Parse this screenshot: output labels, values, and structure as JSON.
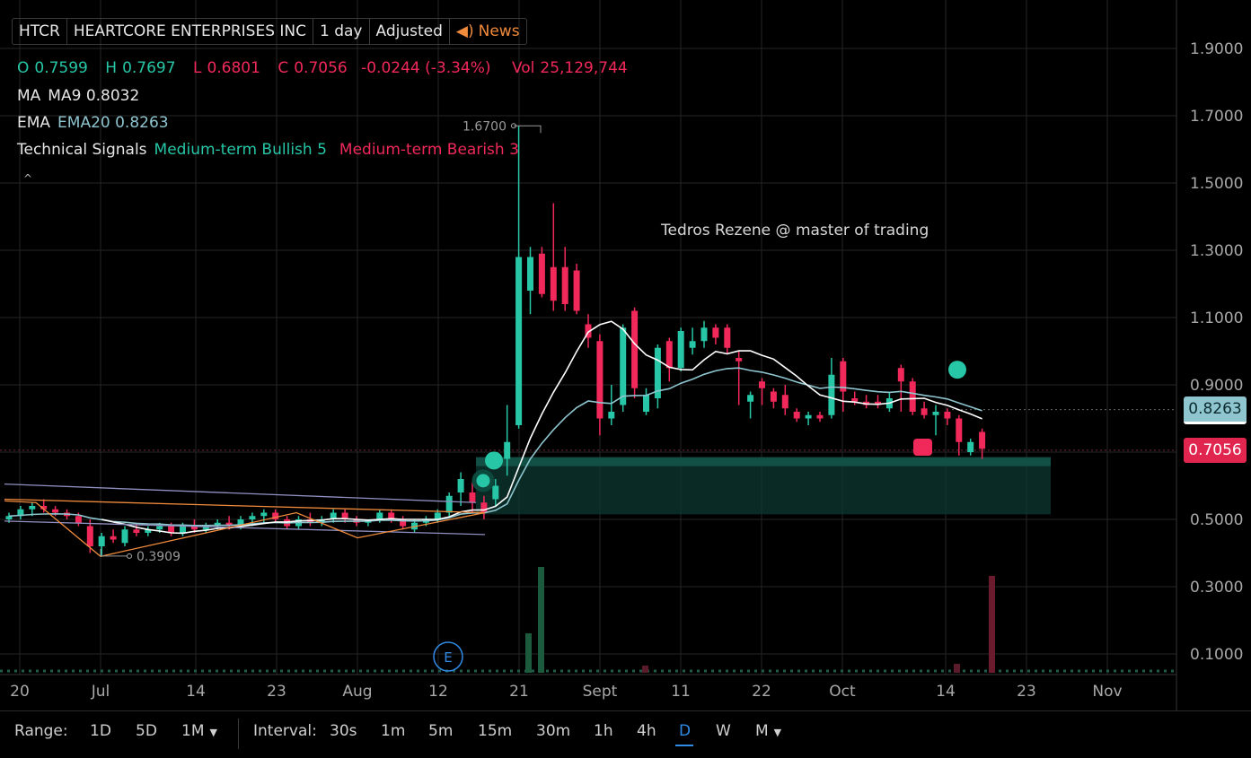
{
  "header": {
    "symbol": "HTCR",
    "company": "HEARTCORE ENTERPRISES INC",
    "period": "1 day",
    "adjustment": "Adjusted",
    "news_label": "News",
    "news_icon": "speaker-icon"
  },
  "ohlc": {
    "o_label": "O",
    "o": "0.7599",
    "h_label": "H",
    "h": "0.7697",
    "l_label": "L",
    "l": "0.6801",
    "c_label": "C",
    "c": "0.7056",
    "change": "-0.0244 (-3.34%)",
    "vol_label": "Vol",
    "vol": "25,129,744"
  },
  "indicators": {
    "ma_label": "MA",
    "ma_value": "MA9 0.8032",
    "ema_label": "EMA",
    "ema_value": "EMA20 0.8263",
    "signals_label": "Technical Signals",
    "bullish": "Medium-term Bullish 5",
    "bearish": "Medium-term Bearish 3"
  },
  "watermark": "Tedros Rezene @ master of trading",
  "price_badges": {
    "ema": "0.8263",
    "close": "0.7056"
  },
  "bottom_bar": {
    "range_label": "Range:",
    "ranges": [
      "1D",
      "5D",
      "1M"
    ],
    "interval_label": "Interval:",
    "intervals": [
      "30s",
      "1m",
      "5m",
      "15m",
      "30m",
      "1h",
      "4h",
      "D",
      "W",
      "M"
    ],
    "active_interval": "D"
  },
  "colors": {
    "up": "#26c6a6",
    "down": "#f0295a",
    "ma": "#ffffff",
    "ema": "#8ec5cf",
    "trend": "#f08a3c",
    "line": "#8f8fc0"
  },
  "chart_data": {
    "type": "candlestick",
    "title": "HTCR",
    "ylim": [
      0.05,
      1.95
    ],
    "y_ticks": [
      "1.9000",
      "1.7000",
      "1.5000",
      "1.3000",
      "1.1000",
      "0.9000",
      "0.7000",
      "0.5000",
      "0.3000",
      "0.1000"
    ],
    "y_tick_values": [
      1.9,
      1.7,
      1.5,
      1.3,
      1.1,
      0.9,
      0.7,
      0.5,
      0.3,
      0.1
    ],
    "x_ticks": [
      "20",
      "Jul",
      "14",
      "23",
      "Aug",
      "12",
      "21",
      "Sept",
      "11",
      "22",
      "Oct",
      "14",
      "23",
      "Nov"
    ],
    "annotations": {
      "high": "1.6700",
      "low": "0.3909",
      "earnings": "E"
    },
    "candles": [
      {
        "o": 0.5,
        "h": 0.52,
        "l": 0.49,
        "c": 0.51
      },
      {
        "o": 0.51,
        "h": 0.54,
        "l": 0.5,
        "c": 0.53
      },
      {
        "o": 0.53,
        "h": 0.55,
        "l": 0.51,
        "c": 0.54
      },
      {
        "o": 0.54,
        "h": 0.56,
        "l": 0.52,
        "c": 0.53
      },
      {
        "o": 0.53,
        "h": 0.54,
        "l": 0.51,
        "c": 0.52
      },
      {
        "o": 0.52,
        "h": 0.53,
        "l": 0.5,
        "c": 0.51
      },
      {
        "o": 0.51,
        "h": 0.52,
        "l": 0.48,
        "c": 0.49
      },
      {
        "o": 0.48,
        "h": 0.5,
        "l": 0.4,
        "c": 0.42
      },
      {
        "o": 0.42,
        "h": 0.46,
        "l": 0.39,
        "c": 0.45
      },
      {
        "o": 0.45,
        "h": 0.47,
        "l": 0.43,
        "c": 0.44
      },
      {
        "o": 0.43,
        "h": 0.48,
        "l": 0.42,
        "c": 0.47
      },
      {
        "o": 0.47,
        "h": 0.49,
        "l": 0.45,
        "c": 0.46
      },
      {
        "o": 0.46,
        "h": 0.48,
        "l": 0.45,
        "c": 0.47
      },
      {
        "o": 0.47,
        "h": 0.49,
        "l": 0.46,
        "c": 0.48
      },
      {
        "o": 0.48,
        "h": 0.49,
        "l": 0.45,
        "c": 0.46
      },
      {
        "o": 0.46,
        "h": 0.49,
        "l": 0.45,
        "c": 0.48
      },
      {
        "o": 0.48,
        "h": 0.5,
        "l": 0.46,
        "c": 0.47
      },
      {
        "o": 0.47,
        "h": 0.49,
        "l": 0.46,
        "c": 0.48
      },
      {
        "o": 0.48,
        "h": 0.5,
        "l": 0.47,
        "c": 0.49
      },
      {
        "o": 0.49,
        "h": 0.51,
        "l": 0.47,
        "c": 0.48
      },
      {
        "o": 0.48,
        "h": 0.51,
        "l": 0.47,
        "c": 0.5
      },
      {
        "o": 0.5,
        "h": 0.52,
        "l": 0.48,
        "c": 0.51
      },
      {
        "o": 0.51,
        "h": 0.53,
        "l": 0.49,
        "c": 0.52
      },
      {
        "o": 0.52,
        "h": 0.53,
        "l": 0.49,
        "c": 0.5
      },
      {
        "o": 0.5,
        "h": 0.51,
        "l": 0.47,
        "c": 0.48
      },
      {
        "o": 0.48,
        "h": 0.51,
        "l": 0.47,
        "c": 0.5
      },
      {
        "o": 0.5,
        "h": 0.52,
        "l": 0.48,
        "c": 0.49
      },
      {
        "o": 0.49,
        "h": 0.51,
        "l": 0.48,
        "c": 0.5
      },
      {
        "o": 0.5,
        "h": 0.53,
        "l": 0.49,
        "c": 0.52
      },
      {
        "o": 0.52,
        "h": 0.53,
        "l": 0.49,
        "c": 0.5
      },
      {
        "o": 0.5,
        "h": 0.51,
        "l": 0.48,
        "c": 0.49
      },
      {
        "o": 0.49,
        "h": 0.5,
        "l": 0.48,
        "c": 0.5
      },
      {
        "o": 0.5,
        "h": 0.53,
        "l": 0.49,
        "c": 0.52
      },
      {
        "o": 0.52,
        "h": 0.53,
        "l": 0.49,
        "c": 0.5
      },
      {
        "o": 0.5,
        "h": 0.51,
        "l": 0.47,
        "c": 0.48
      },
      {
        "o": 0.47,
        "h": 0.5,
        "l": 0.46,
        "c": 0.49
      },
      {
        "o": 0.49,
        "h": 0.51,
        "l": 0.48,
        "c": 0.5
      },
      {
        "o": 0.5,
        "h": 0.53,
        "l": 0.49,
        "c": 0.52
      },
      {
        "o": 0.52,
        "h": 0.58,
        "l": 0.51,
        "c": 0.57
      },
      {
        "o": 0.58,
        "h": 0.64,
        "l": 0.54,
        "c": 0.62
      },
      {
        "o": 0.58,
        "h": 0.61,
        "l": 0.52,
        "c": 0.55
      },
      {
        "o": 0.55,
        "h": 0.57,
        "l": 0.5,
        "c": 0.52
      },
      {
        "o": 0.56,
        "h": 0.62,
        "l": 0.54,
        "c": 0.6
      },
      {
        "o": 0.68,
        "h": 0.84,
        "l": 0.63,
        "c": 0.73
      },
      {
        "o": 0.78,
        "h": 1.67,
        "l": 0.77,
        "c": 1.28
      },
      {
        "o": 1.18,
        "h": 1.31,
        "l": 1.11,
        "c": 1.28
      },
      {
        "o": 1.29,
        "h": 1.31,
        "l": 1.16,
        "c": 1.17
      },
      {
        "o": 1.25,
        "h": 1.44,
        "l": 1.12,
        "c": 1.15
      },
      {
        "o": 1.25,
        "h": 1.31,
        "l": 1.12,
        "c": 1.14
      },
      {
        "o": 1.24,
        "h": 1.26,
        "l": 1.11,
        "c": 1.12
      },
      {
        "o": 1.08,
        "h": 1.11,
        "l": 1.01,
        "c": 1.04
      },
      {
        "o": 1.03,
        "h": 1.05,
        "l": 0.75,
        "c": 0.8
      },
      {
        "o": 0.8,
        "h": 0.9,
        "l": 0.78,
        "c": 0.82
      },
      {
        "o": 0.84,
        "h": 1.08,
        "l": 0.82,
        "c": 1.07
      },
      {
        "o": 1.12,
        "h": 1.13,
        "l": 0.86,
        "c": 0.89
      },
      {
        "o": 0.82,
        "h": 0.89,
        "l": 0.81,
        "c": 0.87
      },
      {
        "o": 0.86,
        "h": 1.02,
        "l": 0.83,
        "c": 1.01
      },
      {
        "o": 1.03,
        "h": 1.04,
        "l": 0.91,
        "c": 0.95
      },
      {
        "o": 0.95,
        "h": 1.07,
        "l": 0.94,
        "c": 1.06
      },
      {
        "o": 1.01,
        "h": 1.07,
        "l": 0.99,
        "c": 1.03
      },
      {
        "o": 1.03,
        "h": 1.09,
        "l": 1.01,
        "c": 1.07
      },
      {
        "o": 1.07,
        "h": 1.08,
        "l": 1.02,
        "c": 1.04
      },
      {
        "o": 1.07,
        "h": 1.08,
        "l": 0.99,
        "c": 1.01
      },
      {
        "o": 0.98,
        "h": 1.0,
        "l": 0.84,
        "c": 0.97
      },
      {
        "o": 0.85,
        "h": 0.88,
        "l": 0.8,
        "c": 0.87
      },
      {
        "o": 0.91,
        "h": 0.92,
        "l": 0.84,
        "c": 0.89
      },
      {
        "o": 0.88,
        "h": 0.89,
        "l": 0.83,
        "c": 0.85
      },
      {
        "o": 0.87,
        "h": 0.9,
        "l": 0.81,
        "c": 0.83
      },
      {
        "o": 0.82,
        "h": 0.83,
        "l": 0.79,
        "c": 0.8
      },
      {
        "o": 0.8,
        "h": 0.82,
        "l": 0.78,
        "c": 0.81
      },
      {
        "o": 0.81,
        "h": 0.82,
        "l": 0.79,
        "c": 0.8
      },
      {
        "o": 0.81,
        "h": 0.98,
        "l": 0.8,
        "c": 0.93
      },
      {
        "o": 0.97,
        "h": 0.98,
        "l": 0.82,
        "c": 0.88
      },
      {
        "o": 0.86,
        "h": 0.88,
        "l": 0.84,
        "c": 0.85
      },
      {
        "o": 0.85,
        "h": 0.87,
        "l": 0.83,
        "c": 0.84
      },
      {
        "o": 0.85,
        "h": 0.87,
        "l": 0.83,
        "c": 0.84
      },
      {
        "o": 0.83,
        "h": 0.88,
        "l": 0.82,
        "c": 0.86
      },
      {
        "o": 0.95,
        "h": 0.96,
        "l": 0.82,
        "c": 0.91
      },
      {
        "o": 0.91,
        "h": 0.92,
        "l": 0.81,
        "c": 0.82
      },
      {
        "o": 0.83,
        "h": 0.85,
        "l": 0.8,
        "c": 0.81
      },
      {
        "o": 0.81,
        "h": 0.84,
        "l": 0.75,
        "c": 0.82
      },
      {
        "o": 0.82,
        "h": 0.83,
        "l": 0.78,
        "c": 0.8
      },
      {
        "o": 0.8,
        "h": 0.81,
        "l": 0.69,
        "c": 0.73
      },
      {
        "o": 0.7,
        "h": 0.74,
        "l": 0.69,
        "c": 0.73
      },
      {
        "o": 0.76,
        "h": 0.77,
        "l": 0.68,
        "c": 0.71
      }
    ]
  }
}
